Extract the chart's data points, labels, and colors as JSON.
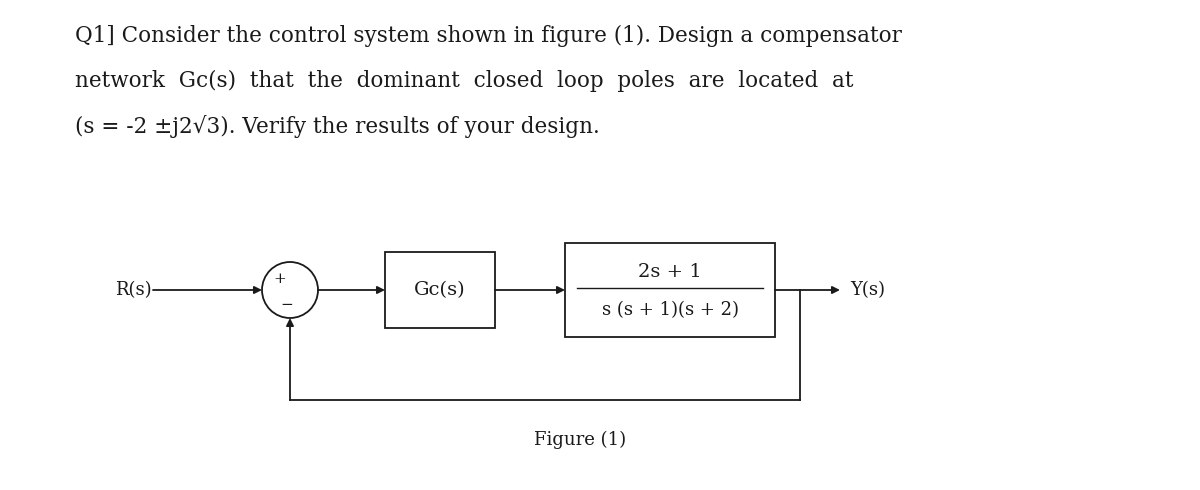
{
  "background_color": "#ffffff",
  "text_color": "#1a1a1a",
  "title_lines": [
    "Q1] Consider the control system shown in figure (1). Design a compensator",
    "network  Gc(s)  that  the  dominant  closed  loop  poles  are  located  at",
    "(s = -2 ±j2√3). Verify the results of your design."
  ],
  "figure_label": "Figure (1)",
  "Rs_label": "R(s)",
  "Ys_label": "Y(s)",
  "gc_label": "Gc(s)",
  "plant_num": "2s + 1",
  "plant_den": "s (s + 1)(s + 2)",
  "plus_sign": "+",
  "minus_sign": "−",
  "font_size_title": 15.5,
  "font_size_block": 13,
  "font_size_signal": 13,
  "font_size_figure": 13
}
